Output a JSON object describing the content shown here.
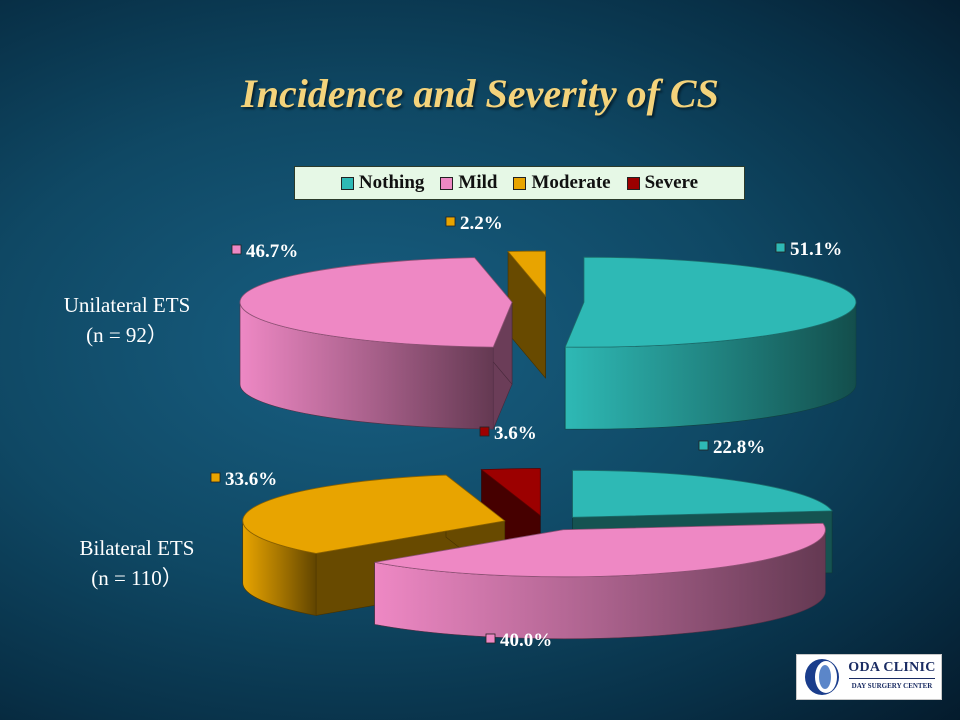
{
  "title": "Incidence and Severity of  CS",
  "legend": {
    "items": [
      {
        "label": "Nothing",
        "color": "#2eb9b5"
      },
      {
        "label": "Mild",
        "color": "#ee88c4"
      },
      {
        "label": "Moderate",
        "color": "#e8a400"
      },
      {
        "label": "Severe",
        "color": "#9c0000"
      }
    ]
  },
  "chart_data": [
    {
      "type": "pie",
      "variant": "3d-exploded",
      "title": "Unilateral ETS",
      "subtitle": "(n = 92）",
      "categories": [
        "Nothing",
        "Mild",
        "Moderate",
        "Severe"
      ],
      "values": [
        51.1,
        46.7,
        2.2,
        0
      ],
      "labels": [
        "51.1%",
        "46.7%",
        "2.2%",
        ""
      ]
    },
    {
      "type": "pie",
      "variant": "3d-exploded",
      "title": "Bilateral ETS",
      "subtitle": "(n = 110）",
      "categories": [
        "Nothing",
        "Mild",
        "Moderate",
        "Severe"
      ],
      "values": [
        22.8,
        40.0,
        33.6,
        3.6
      ],
      "labels": [
        "22.8%",
        "40.0%",
        "33.6%",
        "3.6%"
      ]
    }
  ],
  "logo": {
    "name": "ODA CLINIC",
    "subtitle": "DAY SURGERY CENTER"
  }
}
